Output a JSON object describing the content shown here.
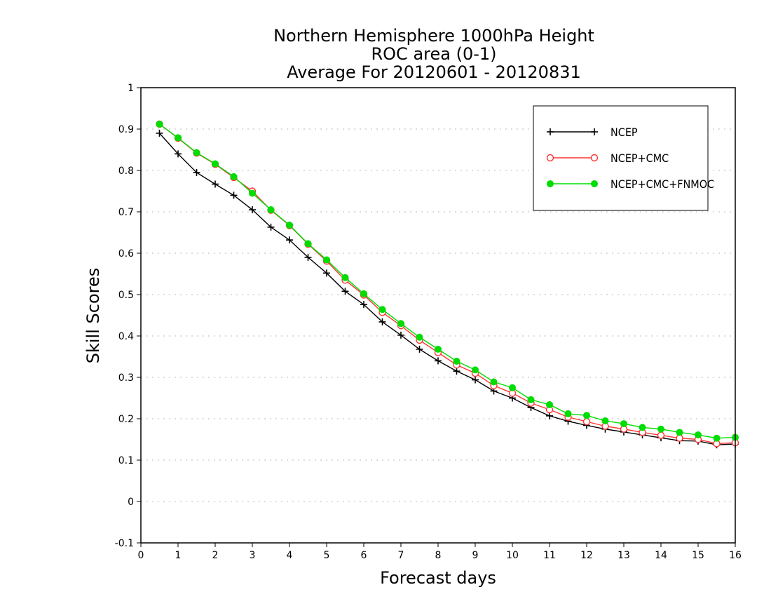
{
  "chart_data": {
    "type": "line",
    "title_lines": [
      "Northern Hemisphere 1000hPa Height",
      "ROC area (0-1)",
      "Average For 20120601 - 20120831"
    ],
    "xlabel": "Forecast days",
    "ylabel": "Skill Scores",
    "xlim": [
      0,
      16
    ],
    "ylim": [
      -0.1,
      1
    ],
    "x_ticks": [
      "0",
      "1",
      "2",
      "3",
      "4",
      "5",
      "6",
      "7",
      "8",
      "9",
      "10",
      "11",
      "12",
      "13",
      "14",
      "15",
      "16"
    ],
    "y_ticks": [
      "-0.1",
      "0",
      "0.1",
      "0.2",
      "0.3",
      "0.4",
      "0.5",
      "0.6",
      "0.7",
      "0.8",
      "0.9",
      "1"
    ],
    "grid": "horizontal dotted",
    "legend_position": "top-right",
    "x": [
      0.5,
      1,
      1.5,
      2,
      2.5,
      3,
      3.5,
      4,
      4.5,
      5,
      5.5,
      6,
      6.5,
      7,
      7.5,
      8,
      8.5,
      9,
      9.5,
      10,
      10.5,
      11,
      11.5,
      12,
      12.5,
      13,
      13.5,
      14,
      14.5,
      15,
      15.5,
      16
    ],
    "series": [
      {
        "name": "NCEP",
        "color": "#000000",
        "marker": "plus",
        "values": [
          0.89,
          0.84,
          0.795,
          0.767,
          0.74,
          0.705,
          0.663,
          0.632,
          0.59,
          0.552,
          0.508,
          0.476,
          0.434,
          0.402,
          0.368,
          0.34,
          0.315,
          0.294,
          0.267,
          0.25,
          0.227,
          0.207,
          0.194,
          0.184,
          0.175,
          0.168,
          0.161,
          0.154,
          0.147,
          0.146,
          0.137,
          0.139
        ]
      },
      {
        "name": "NCEP+CMC",
        "color": "#ff3333",
        "marker": "open-circle",
        "values": [
          0.912,
          0.878,
          0.842,
          0.815,
          0.783,
          0.75,
          0.704,
          0.667,
          0.622,
          0.581,
          0.535,
          0.499,
          0.457,
          0.425,
          0.39,
          0.36,
          0.33,
          0.31,
          0.28,
          0.262,
          0.238,
          0.222,
          0.204,
          0.193,
          0.182,
          0.175,
          0.167,
          0.16,
          0.153,
          0.15,
          0.14,
          0.142
        ]
      },
      {
        "name": "NCEP+CMC+FNMOC",
        "color": "#00dd00",
        "marker": "filled-circle",
        "values": [
          0.912,
          0.879,
          0.843,
          0.816,
          0.785,
          0.745,
          0.705,
          0.668,
          0.623,
          0.584,
          0.541,
          0.502,
          0.464,
          0.43,
          0.397,
          0.368,
          0.339,
          0.318,
          0.289,
          0.275,
          0.246,
          0.234,
          0.212,
          0.208,
          0.195,
          0.188,
          0.179,
          0.175,
          0.167,
          0.161,
          0.153,
          0.155
        ]
      }
    ]
  }
}
